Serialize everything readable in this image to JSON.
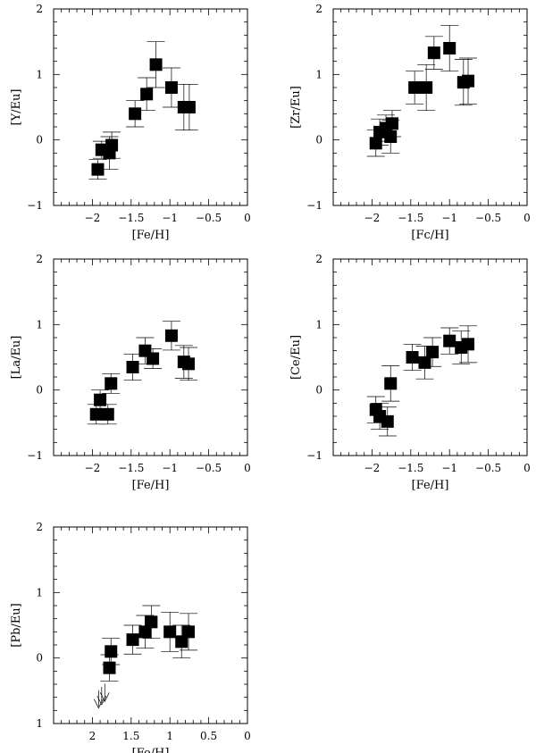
{
  "chart_data": [
    {
      "type": "scatter",
      "xlabel": "[Fe/H]",
      "ylabel": "[Y/Eu]",
      "xlim": [
        0,
        -2.5
      ],
      "ylim": [
        -1,
        2
      ],
      "xticks": [
        -2,
        -1.5,
        -1,
        -0.5,
        0
      ],
      "xtick_labels": [
        "−2",
        "−1.5",
        "−1",
        "−0.5",
        "0"
      ],
      "yticks": [
        -1,
        0,
        1,
        2
      ],
      "ytick_labels": [
        "−1",
        "0",
        "1",
        "2"
      ],
      "points": [
        {
          "x": -1.93,
          "y": -0.45,
          "err": 0.15
        },
        {
          "x": -1.88,
          "y": -0.15,
          "err": 0.13
        },
        {
          "x": -1.78,
          "y": -0.2,
          "err": 0.25
        },
        {
          "x": -1.75,
          "y": -0.08,
          "err": 0.2
        },
        {
          "x": -1.45,
          "y": 0.4,
          "err": 0.2
        },
        {
          "x": -1.3,
          "y": 0.7,
          "err": 0.25
        },
        {
          "x": -1.18,
          "y": 1.15,
          "err": 0.35
        },
        {
          "x": -0.98,
          "y": 0.8,
          "err": 0.3
        },
        {
          "x": -0.82,
          "y": 0.5,
          "err": 0.35
        },
        {
          "x": -0.75,
          "y": 0.5,
          "err": 0.35
        }
      ]
    },
    {
      "type": "scatter",
      "xlabel": "[Fc/H]",
      "ylabel": "[Zr/Eu]",
      "xlim": [
        0,
        -2.5
      ],
      "ylim": [
        -1,
        2
      ],
      "xticks": [
        -2,
        -1.5,
        -1,
        -0.5,
        0
      ],
      "xtick_labels": [
        "−2",
        "−1.5",
        "−1",
        "−0.5",
        "0"
      ],
      "yticks": [
        -1,
        0,
        1,
        2
      ],
      "ytick_labels": [
        "−1",
        "0",
        "1",
        "2"
      ],
      "points": [
        {
          "x": -1.95,
          "y": -0.05,
          "err": 0.2
        },
        {
          "x": -1.9,
          "y": 0.12,
          "err": 0.2
        },
        {
          "x": -1.82,
          "y": 0.18,
          "err": 0.2
        },
        {
          "x": -1.76,
          "y": 0.05,
          "err": 0.25
        },
        {
          "x": -1.74,
          "y": 0.25,
          "err": 0.2
        },
        {
          "x": -1.45,
          "y": 0.8,
          "err": 0.25
        },
        {
          "x": -1.3,
          "y": 0.8,
          "err": 0.35
        },
        {
          "x": -1.2,
          "y": 1.33,
          "err": 0.25
        },
        {
          "x": -1.0,
          "y": 1.4,
          "err": 0.35
        },
        {
          "x": -0.82,
          "y": 0.88,
          "err": 0.35
        },
        {
          "x": -0.76,
          "y": 0.9,
          "err": 0.35
        }
      ]
    },
    {
      "type": "scatter",
      "xlabel": "[Fe/H]",
      "ylabel": "[La/Eu]",
      "xlim": [
        0,
        -2.5
      ],
      "ylim": [
        -1,
        2
      ],
      "xticks": [
        -2,
        -1.5,
        -1,
        -0.5,
        0
      ],
      "xtick_labels": [
        "−2",
        "−1.5",
        "−1",
        "−0.5",
        "0"
      ],
      "yticks": [
        -1,
        0,
        1,
        2
      ],
      "ytick_labels": [
        "−1",
        "0",
        "1",
        "2"
      ],
      "points": [
        {
          "x": -1.95,
          "y": -0.37,
          "err": 0.15
        },
        {
          "x": -1.9,
          "y": -0.15,
          "err": 0.15
        },
        {
          "x": -1.8,
          "y": -0.37,
          "err": 0.15
        },
        {
          "x": -1.76,
          "y": 0.1,
          "err": 0.15
        },
        {
          "x": -1.48,
          "y": 0.35,
          "err": 0.2
        },
        {
          "x": -1.32,
          "y": 0.6,
          "err": 0.2
        },
        {
          "x": -1.22,
          "y": 0.48,
          "err": 0.15
        },
        {
          "x": -0.98,
          "y": 0.83,
          "err": 0.22
        },
        {
          "x": -0.82,
          "y": 0.43,
          "err": 0.25
        },
        {
          "x": -0.76,
          "y": 0.4,
          "err": 0.25
        }
      ]
    },
    {
      "type": "scatter",
      "xlabel": "[Fe/H]",
      "ylabel": "[Ce/Eu]",
      "xlim": [
        0,
        -2.5
      ],
      "ylim": [
        -1,
        2
      ],
      "xticks": [
        -2,
        -1.5,
        -1,
        -0.5,
        0
      ],
      "xtick_labels": [
        "−2",
        "−1.5",
        "−1",
        "−0.5",
        "0"
      ],
      "yticks": [
        -1,
        0,
        1,
        2
      ],
      "ytick_labels": [
        "−1",
        "0",
        "1",
        "2"
      ],
      "points": [
        {
          "x": -1.95,
          "y": -0.3,
          "err": 0.2
        },
        {
          "x": -1.9,
          "y": -0.4,
          "err": 0.2
        },
        {
          "x": -1.8,
          "y": -0.48,
          "err": 0.22
        },
        {
          "x": -1.76,
          "y": 0.1,
          "err": 0.27
        },
        {
          "x": -1.48,
          "y": 0.5,
          "err": 0.2
        },
        {
          "x": -1.32,
          "y": 0.42,
          "err": 0.25
        },
        {
          "x": -1.22,
          "y": 0.58,
          "err": 0.22
        },
        {
          "x": -1.0,
          "y": 0.75,
          "err": 0.2
        },
        {
          "x": -0.85,
          "y": 0.65,
          "err": 0.25
        },
        {
          "x": -0.76,
          "y": 0.7,
          "err": 0.28
        }
      ]
    },
    {
      "type": "scatter",
      "xlabel": "[Fe/H]",
      "ylabel": "[Pb/Eu]",
      "xlim": [
        0,
        -2.5
      ],
      "ylim": [
        -1,
        2
      ],
      "xticks": [
        -2,
        -1.5,
        -1,
        -0.5,
        0
      ],
      "xtick_labels": [
        "2",
        "1.5",
        "1",
        "0.5",
        "0"
      ],
      "yticks": [
        -1,
        0,
        1,
        2
      ],
      "ytick_labels": [
        "1",
        "0",
        "1",
        "2"
      ],
      "points": [
        {
          "x": -1.78,
          "y": -0.15,
          "err": 0.2
        },
        {
          "x": -1.76,
          "y": 0.1,
          "err": 0.2
        },
        {
          "x": -1.48,
          "y": 0.28,
          "err": 0.22
        },
        {
          "x": -1.32,
          "y": 0.4,
          "err": 0.25
        },
        {
          "x": -1.24,
          "y": 0.55,
          "err": 0.25
        },
        {
          "x": -1.0,
          "y": 0.4,
          "err": 0.3
        },
        {
          "x": -0.85,
          "y": 0.25,
          "err": 0.25
        },
        {
          "x": -0.76,
          "y": 0.4,
          "err": 0.28
        }
      ],
      "upper_limits": [
        {
          "x": -1.92,
          "y": -0.6
        },
        {
          "x": -1.88,
          "y": -0.55
        },
        {
          "x": -1.84,
          "y": -0.5
        }
      ]
    }
  ]
}
